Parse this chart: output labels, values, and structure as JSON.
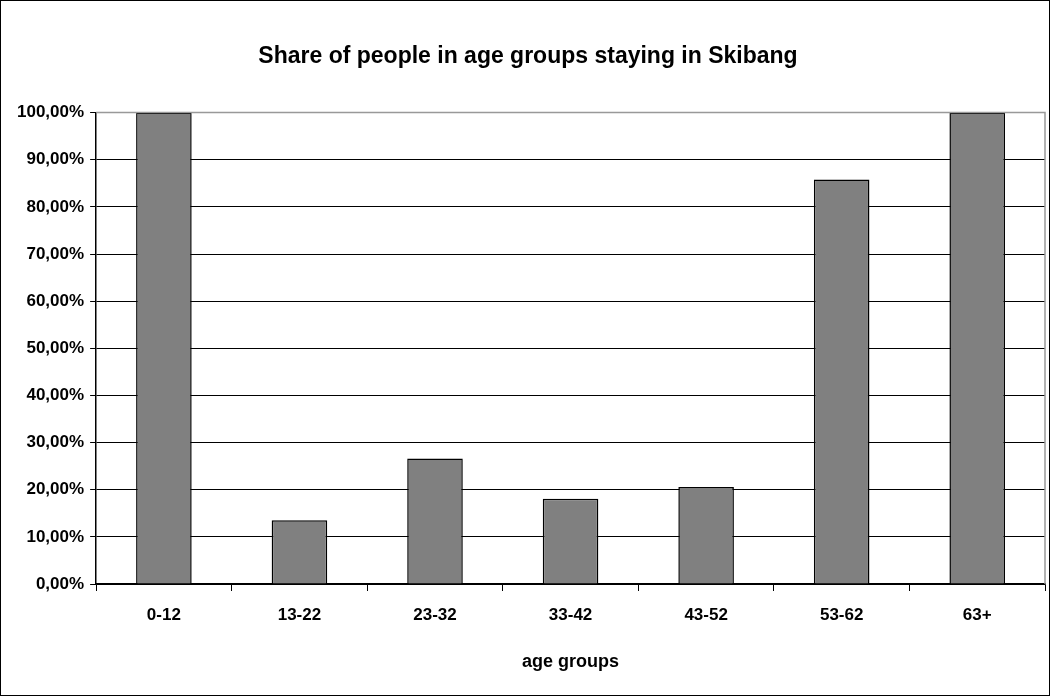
{
  "chart_data": {
    "type": "bar",
    "title": "Share of people in age groups staying in Skibang",
    "xlabel": "age groups",
    "categories": [
      "0-12",
      "13-22",
      "23-32",
      "33-42",
      "43-52",
      "53-62",
      "63+"
    ],
    "values": [
      100,
      13.5,
      26.6,
      18.1,
      20.6,
      85.8,
      100
    ],
    "color": "#808080",
    "ylim": [
      0,
      100
    ],
    "yticks": [
      {
        "value": 0,
        "label": "0,00%"
      },
      {
        "value": 10,
        "label": "10,00%"
      },
      {
        "value": 20,
        "label": "20,00%"
      },
      {
        "value": 30,
        "label": "30,00%"
      },
      {
        "value": 40,
        "label": "40,00%"
      },
      {
        "value": 50,
        "label": "50,00%"
      },
      {
        "value": 60,
        "label": "60,00%"
      },
      {
        "value": 70,
        "label": "70,00%"
      },
      {
        "value": 80,
        "label": "80,00%"
      },
      {
        "value": 90,
        "label": "90,00%"
      },
      {
        "value": 100,
        "label": "100,00%"
      }
    ],
    "grid": "y",
    "legend": false
  }
}
